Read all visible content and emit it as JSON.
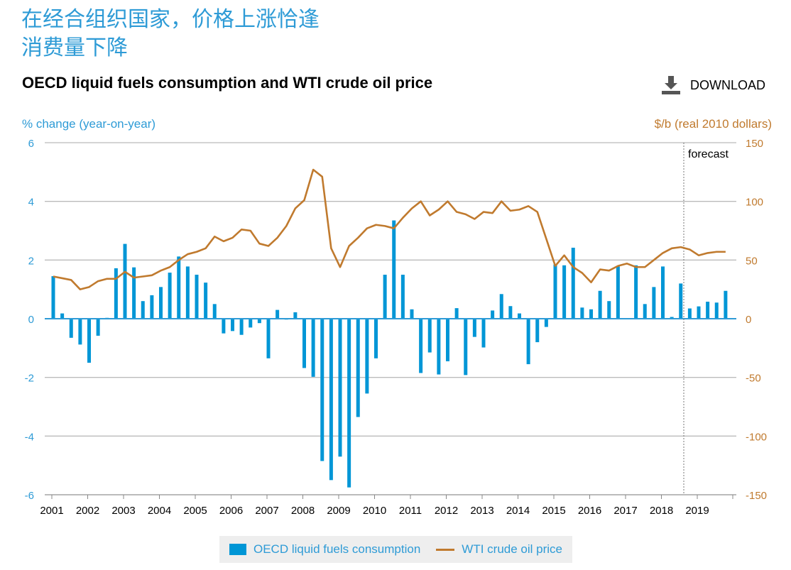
{
  "headline": [
    "在经合组织国家，价格上涨恰逢",
    "消费量下降"
  ],
  "download_label": "DOWNLOAD",
  "colors": {
    "bar": "#0096d6",
    "line": "#c07a2e",
    "headline": "#2e9bd6"
  },
  "chart_data": {
    "type": "bar+line",
    "title": "OECD liquid fuels consumption and WTI crude oil price",
    "ylabel_left": "% change (year-on-year)",
    "ylabel_right": "$/b (real 2010 dollars)",
    "ylim_left": [
      -6,
      6
    ],
    "ylim_right": [
      -150,
      150
    ],
    "yticks_left": [
      "6",
      "4",
      "2",
      "0",
      "-2",
      "-4",
      "-6"
    ],
    "yticks_right": [
      "150",
      "100",
      "50",
      "0",
      "-50",
      "-100",
      "-150"
    ],
    "xticks": [
      "2001",
      "2002",
      "2003",
      "2004",
      "2005",
      "2006",
      "2007",
      "2008",
      "2009",
      "2010",
      "2011",
      "2012",
      "2013",
      "2014",
      "2015",
      "2016",
      "2017",
      "2018",
      "2019"
    ],
    "x_frequency": "quarterly",
    "annotation": "forecast",
    "forecast_start": "2018Q3",
    "grid": true,
    "legend_position": "bottom",
    "series": [
      {
        "name": "OECD liquid fuels consumption",
        "type": "bar",
        "axis": "left",
        "values": [
          1.45,
          0.18,
          -0.65,
          -0.88,
          -1.5,
          -0.58,
          0.03,
          1.72,
          2.55,
          1.75,
          0.6,
          0.8,
          1.08,
          1.57,
          2.12,
          1.78,
          1.5,
          1.23,
          0.5,
          -0.5,
          -0.42,
          -0.55,
          -0.3,
          -0.15,
          -1.35,
          0.3,
          -0.03,
          0.22,
          -1.68,
          -1.98,
          -4.85,
          -5.5,
          -4.7,
          -5.75,
          -3.35,
          -2.55,
          -1.35,
          1.5,
          3.35,
          1.5,
          0.32,
          -1.85,
          -1.15,
          -1.9,
          -1.45,
          0.36,
          -1.92,
          -0.62,
          -0.98,
          0.28,
          0.84,
          0.43,
          0.18,
          -1.55,
          -0.8,
          -0.28,
          1.85,
          1.82,
          2.42,
          0.38,
          0.32,
          0.95,
          0.6,
          1.78,
          0.02,
          1.82,
          0.5,
          1.08,
          1.78,
          0.06,
          1.2,
          0.35,
          0.42,
          0.58,
          0.55,
          0.95
        ]
      },
      {
        "name": "WTI crude oil price",
        "type": "line",
        "axis": "right",
        "values": [
          36,
          34.5,
          33,
          25,
          27,
          32,
          34,
          34,
          40,
          35,
          36,
          37,
          41,
          44,
          50,
          55,
          57,
          60,
          70,
          66,
          69,
          76,
          75,
          64,
          62,
          69,
          79,
          94,
          101,
          127,
          121,
          60,
          44,
          62,
          69,
          77,
          80,
          79,
          77,
          86,
          94,
          100,
          88,
          93,
          100,
          91,
          89,
          85,
          91,
          90,
          100,
          92,
          93,
          96,
          91,
          68,
          45,
          54,
          44,
          39,
          31,
          42,
          41,
          45,
          47,
          44,
          44,
          50,
          56,
          60,
          61,
          59,
          54,
          56,
          57,
          57
        ]
      }
    ]
  }
}
